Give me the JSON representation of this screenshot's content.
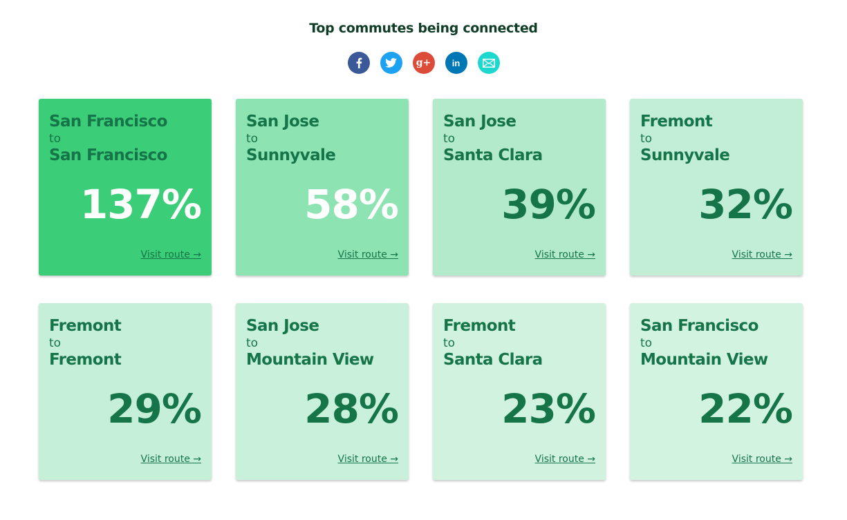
{
  "header": {
    "title": "Top commutes being connected"
  },
  "share": [
    {
      "name": "facebook-icon",
      "color": "#3b5998"
    },
    {
      "name": "twitter-icon",
      "color": "#1da1f2"
    },
    {
      "name": "google-plus-icon",
      "color": "#dd4b39",
      "glyph": "g+"
    },
    {
      "name": "linkedin-icon",
      "color": "#0077b5",
      "glyph": "in"
    },
    {
      "name": "email-icon",
      "color": "#1ed8d0"
    }
  ],
  "to_word": "to",
  "visit_label": "Visit route →",
  "routes": [
    {
      "from": "San Francisco",
      "to": "San Francisco",
      "pct": "137%",
      "bg": "#3ccd78"
    },
    {
      "from": "San Jose",
      "to": "Sunnyvale",
      "pct": "58%",
      "bg": "#8de3b2"
    },
    {
      "from": "San Jose",
      "to": "Santa Clara",
      "pct": "39%",
      "bg": "#b3eacb"
    },
    {
      "from": "Fremont",
      "to": "Sunnyvale",
      "pct": "32%",
      "bg": "#c1eed4"
    },
    {
      "from": "Fremont",
      "to": "Fremont",
      "pct": "29%",
      "bg": "#c6efd8"
    },
    {
      "from": "San Jose",
      "to": "Mountain View",
      "pct": "28%",
      "bg": "#c8f0da"
    },
    {
      "from": "Fremont",
      "to": "Santa Clara",
      "pct": "23%",
      "bg": "#d1f2df"
    },
    {
      "from": "San Francisco",
      "to": "Mountain View",
      "pct": "22%",
      "bg": "#d3f3e1"
    }
  ]
}
